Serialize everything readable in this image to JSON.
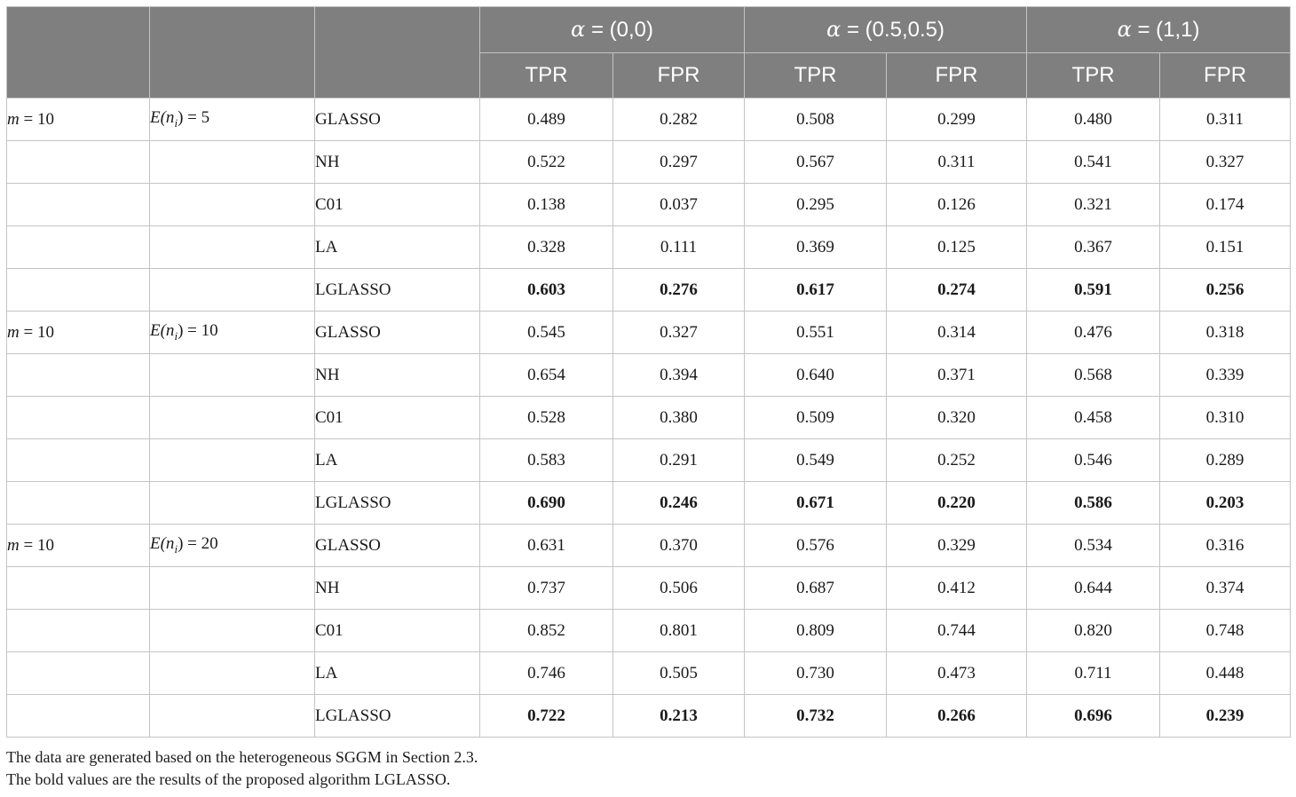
{
  "table": {
    "alpha_symbol": "α",
    "column_groups": [
      {
        "label": "= (0,0)"
      },
      {
        "label": "= (0.5,0.5)"
      },
      {
        "label": "= (1,1)"
      }
    ],
    "sub_headers": [
      "TPR",
      "FPR",
      "TPR",
      "FPR",
      "TPR",
      "FPR"
    ],
    "blocks": [
      {
        "m_var": "m",
        "m_text": "= 10",
        "e_var": "E(n",
        "e_sub": "i",
        "e_text": ") = 5",
        "rows": [
          {
            "method": "GLASSO",
            "values": [
              "0.489",
              "0.282",
              "0.508",
              "0.299",
              "0.480",
              "0.311"
            ]
          },
          {
            "method": "NH",
            "values": [
              "0.522",
              "0.297",
              "0.567",
              "0.311",
              "0.541",
              "0.327"
            ]
          },
          {
            "method": "C01",
            "values": [
              "0.138",
              "0.037",
              "0.295",
              "0.126",
              "0.321",
              "0.174"
            ]
          },
          {
            "method": "LA",
            "values": [
              "0.328",
              "0.111",
              "0.369",
              "0.125",
              "0.367",
              "0.151"
            ]
          },
          {
            "method": "LGLASSO",
            "values": [
              "0.603",
              "0.276",
              "0.617",
              "0.274",
              "0.591",
              "0.256"
            ]
          }
        ]
      },
      {
        "m_var": "m",
        "m_text": "= 10",
        "e_var": "E(n",
        "e_sub": "i",
        "e_text": ") = 10",
        "rows": [
          {
            "method": "GLASSO",
            "values": [
              "0.545",
              "0.327",
              "0.551",
              "0.314",
              "0.476",
              "0.318"
            ]
          },
          {
            "method": "NH",
            "values": [
              "0.654",
              "0.394",
              "0.640",
              "0.371",
              "0.568",
              "0.339"
            ]
          },
          {
            "method": "C01",
            "values": [
              "0.528",
              "0.380",
              "0.509",
              "0.320",
              "0.458",
              "0.310"
            ]
          },
          {
            "method": "LA",
            "values": [
              "0.583",
              "0.291",
              "0.549",
              "0.252",
              "0.546",
              "0.289"
            ]
          },
          {
            "method": "LGLASSO",
            "values": [
              "0.690",
              "0.246",
              "0.671",
              "0.220",
              "0.586",
              "0.203"
            ]
          }
        ]
      },
      {
        "m_var": "m",
        "m_text": "= 10",
        "e_var": "E(n",
        "e_sub": "i",
        "e_text": ") = 20",
        "rows": [
          {
            "method": "GLASSO",
            "values": [
              "0.631",
              "0.370",
              "0.576",
              "0.329",
              "0.534",
              "0.316"
            ]
          },
          {
            "method": "NH",
            "values": [
              "0.737",
              "0.506",
              "0.687",
              "0.412",
              "0.644",
              "0.374"
            ]
          },
          {
            "method": "C01",
            "values": [
              "0.852",
              "0.801",
              "0.809",
              "0.744",
              "0.820",
              "0.748"
            ]
          },
          {
            "method": "LA",
            "values": [
              "0.746",
              "0.505",
              "0.730",
              "0.473",
              "0.711",
              "0.448"
            ]
          },
          {
            "method": "LGLASSO",
            "values": [
              "0.722",
              "0.213",
              "0.732",
              "0.266",
              "0.696",
              "0.239"
            ]
          }
        ]
      }
    ]
  },
  "notes": [
    "The data are generated based on the heterogeneous SGGM in Section 2.3.",
    "The bold values are the results of the proposed algorithm LGLASSO."
  ],
  "colors": {
    "header_bg": "#7f7f7f",
    "header_text": "#ffffff",
    "border": "#c4c4c4",
    "text": "#1a1a1a"
  }
}
